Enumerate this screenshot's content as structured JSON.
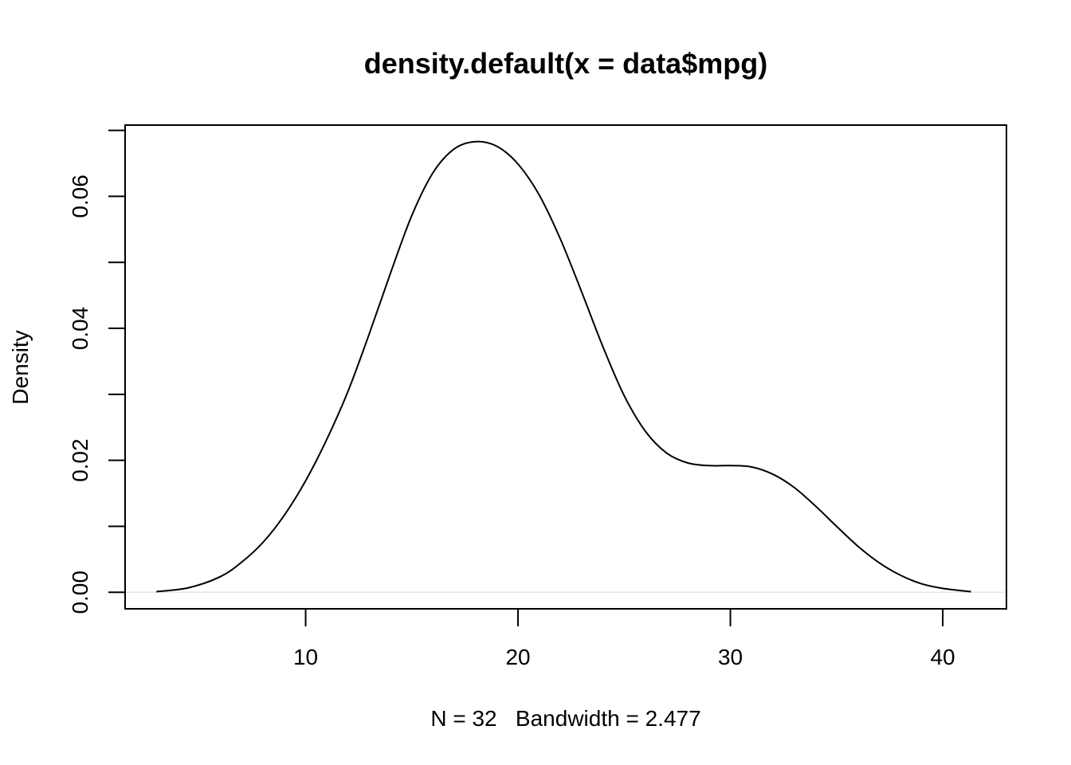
{
  "chart_data": {
    "type": "line",
    "title": "density.default(x = data$mpg)",
    "xlabel": "N = 32   Bandwidth = 2.477",
    "ylabel": "Density",
    "xlim": [
      1.5,
      43
    ],
    "ylim": [
      -0.0025,
      0.0708
    ],
    "xticks": [
      10,
      20,
      30,
      40
    ],
    "xtick_labels": [
      "10",
      "20",
      "30",
      "40"
    ],
    "yticks": [
      0.0,
      0.01,
      0.02,
      0.03,
      0.04,
      0.05,
      0.06,
      0.07
    ],
    "ytick_labels": [
      "0.00",
      "",
      "0.02",
      "",
      "0.04",
      "",
      "0.06",
      ""
    ],
    "grid": false,
    "baseline": 0,
    "baseline_color": "#e6e6e6",
    "line_color": "#000000",
    "series": [
      {
        "x": [
          2.97,
          4.5,
          6,
          7,
          8,
          9,
          10,
          11,
          12,
          13,
          14,
          15,
          16,
          17,
          18,
          19,
          20,
          21,
          22,
          23,
          24,
          25,
          26,
          27,
          28,
          29,
          30,
          31,
          32,
          33,
          34,
          35,
          36,
          37,
          38,
          39,
          40,
          41.33
        ],
        "y": [
          0.0001,
          0.0007,
          0.0024,
          0.0046,
          0.0076,
          0.0117,
          0.0169,
          0.0232,
          0.0305,
          0.0392,
          0.0484,
          0.0571,
          0.0636,
          0.0672,
          0.0683,
          0.0676,
          0.0649,
          0.0602,
          0.0535,
          0.0455,
          0.0372,
          0.0298,
          0.0244,
          0.0211,
          0.0196,
          0.0192,
          0.0192,
          0.019,
          0.0179,
          0.0159,
          0.0131,
          0.01,
          0.007,
          0.0045,
          0.0026,
          0.0013,
          0.0006,
          0.0001
        ]
      }
    ]
  }
}
